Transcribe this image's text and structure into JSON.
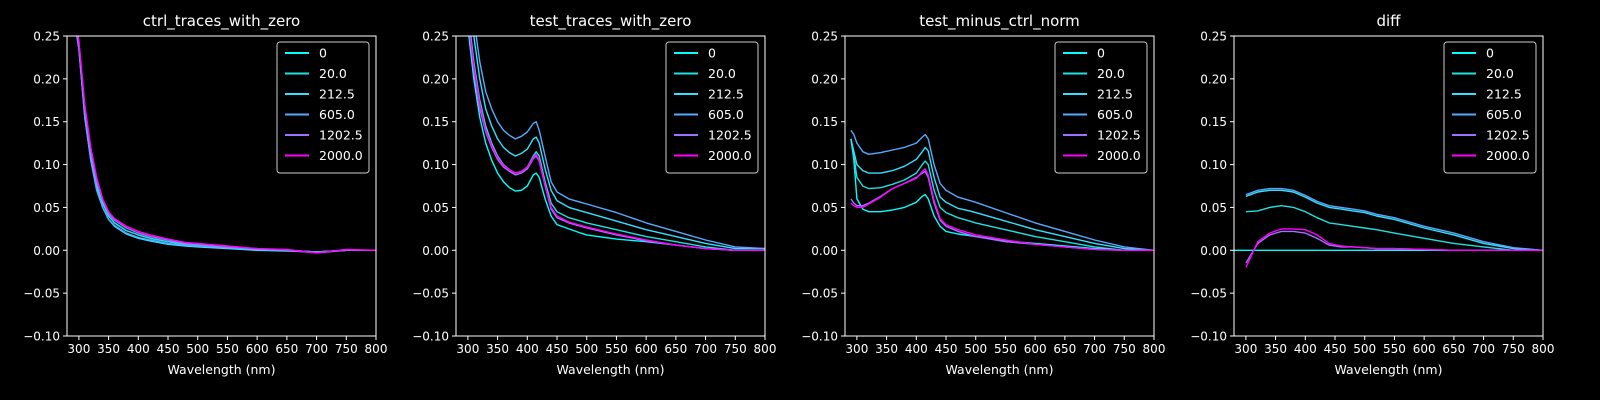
{
  "figure": {
    "background": "#000000",
    "foreground": "#ffffff"
  },
  "legend_labels": [
    "0",
    "20.0",
    "212.5",
    "605.0",
    "1202.5",
    "2000.0"
  ],
  "series_colors": [
    "#00ffff",
    "#20dfdf",
    "#33e0ff",
    "#55aaff",
    "#a070ff",
    "#ff00ff"
  ],
  "chart_data": [
    {
      "type": "line",
      "title": "ctrl_traces_with_zero",
      "xlabel": "Wavelength (nm)",
      "ylabel": "",
      "xlim": [
        280,
        800
      ],
      "ylim": [
        -0.1,
        0.25
      ],
      "xticks": [
        300,
        350,
        400,
        450,
        500,
        550,
        600,
        650,
        700,
        750,
        800
      ],
      "yticks": [
        -0.1,
        -0.05,
        0.0,
        0.05,
        0.1,
        0.15,
        0.2,
        0.25
      ],
      "ytick_labels": [
        "−0.10",
        "−0.05",
        "0.00",
        "0.05",
        "0.10",
        "0.15",
        "0.20",
        "0.25"
      ],
      "grid": false,
      "legend_position": "top-right",
      "x": [
        290,
        300,
        310,
        320,
        330,
        340,
        350,
        360,
        380,
        400,
        420,
        450,
        480,
        500,
        550,
        600,
        650,
        700,
        750,
        800
      ],
      "series": [
        {
          "name": "0",
          "values": [
            0.28,
            0.24,
            0.16,
            0.11,
            0.075,
            0.055,
            0.04,
            0.032,
            0.023,
            0.018,
            0.014,
            0.01,
            0.007,
            0.006,
            0.003,
            0.001,
            0.0,
            -0.002,
            0.0,
            0.0
          ]
        },
        {
          "name": "20.0",
          "values": [
            0.28,
            0.24,
            0.16,
            0.11,
            0.075,
            0.055,
            0.04,
            0.032,
            0.023,
            0.018,
            0.014,
            0.01,
            0.007,
            0.006,
            0.003,
            0.001,
            0.0,
            -0.002,
            0.0,
            0.0
          ]
        },
        {
          "name": "212.5",
          "values": [
            0.28,
            0.235,
            0.155,
            0.105,
            0.07,
            0.05,
            0.036,
            0.028,
            0.019,
            0.014,
            0.011,
            0.007,
            0.005,
            0.004,
            0.002,
            0.0,
            -0.001,
            -0.002,
            0.0,
            0.0
          ]
        },
        {
          "name": "605.0",
          "values": [
            0.28,
            0.235,
            0.155,
            0.105,
            0.07,
            0.05,
            0.036,
            0.029,
            0.02,
            0.015,
            0.012,
            0.008,
            0.006,
            0.005,
            0.003,
            0.001,
            0.0,
            -0.002,
            0.0,
            0.0
          ]
        },
        {
          "name": "1202.5",
          "values": [
            0.28,
            0.24,
            0.165,
            0.115,
            0.08,
            0.058,
            0.043,
            0.035,
            0.026,
            0.02,
            0.016,
            0.012,
            0.008,
            0.007,
            0.004,
            0.002,
            0.0,
            -0.003,
            0.0,
            0.0
          ]
        },
        {
          "name": "2000.0",
          "values": [
            0.28,
            0.245,
            0.17,
            0.12,
            0.085,
            0.06,
            0.045,
            0.037,
            0.028,
            0.022,
            0.018,
            0.013,
            0.009,
            0.008,
            0.005,
            0.002,
            0.001,
            -0.003,
            0.001,
            0.0
          ]
        }
      ]
    },
    {
      "type": "line",
      "title": "test_traces_with_zero",
      "xlabel": "Wavelength (nm)",
      "ylabel": "",
      "xlim": [
        280,
        800
      ],
      "ylim": [
        -0.1,
        0.25
      ],
      "xticks": [
        300,
        350,
        400,
        450,
        500,
        550,
        600,
        650,
        700,
        750,
        800
      ],
      "yticks": [
        -0.1,
        -0.05,
        0.0,
        0.05,
        0.1,
        0.15,
        0.2,
        0.25
      ],
      "ytick_labels": [
        "−0.10",
        "−0.05",
        "0.00",
        "0.05",
        "0.10",
        "0.15",
        "0.20",
        "0.25"
      ],
      "grid": false,
      "legend_position": "top-right",
      "x": [
        300,
        310,
        320,
        330,
        340,
        350,
        360,
        370,
        380,
        390,
        400,
        410,
        415,
        420,
        430,
        440,
        450,
        470,
        490,
        500,
        550,
        600,
        650,
        700,
        750,
        800
      ],
      "series": [
        {
          "name": "0",
          "values": [
            0.26,
            0.2,
            0.155,
            0.125,
            0.105,
            0.09,
            0.08,
            0.073,
            0.069,
            0.07,
            0.075,
            0.088,
            0.09,
            0.085,
            0.06,
            0.04,
            0.03,
            0.025,
            0.02,
            0.018,
            0.013,
            0.01,
            0.006,
            0.002,
            0.0,
            0.0
          ]
        },
        {
          "name": "20.0",
          "values": [
            0.28,
            0.22,
            0.175,
            0.145,
            0.125,
            0.11,
            0.1,
            0.094,
            0.09,
            0.092,
            0.097,
            0.11,
            0.115,
            0.11,
            0.08,
            0.055,
            0.045,
            0.038,
            0.034,
            0.032,
            0.024,
            0.016,
            0.01,
            0.004,
            0.0,
            0.0
          ]
        },
        {
          "name": "212.5",
          "values": [
            0.3,
            0.25,
            0.2,
            0.165,
            0.145,
            0.13,
            0.12,
            0.114,
            0.11,
            0.113,
            0.118,
            0.13,
            0.132,
            0.125,
            0.095,
            0.07,
            0.058,
            0.05,
            0.046,
            0.044,
            0.034,
            0.024,
            0.016,
            0.008,
            0.002,
            0.002
          ]
        },
        {
          "name": "605.0",
          "values": [
            0.32,
            0.27,
            0.22,
            0.185,
            0.165,
            0.15,
            0.14,
            0.134,
            0.13,
            0.133,
            0.138,
            0.148,
            0.15,
            0.14,
            0.11,
            0.08,
            0.068,
            0.06,
            0.056,
            0.054,
            0.044,
            0.032,
            0.022,
            0.012,
            0.004,
            0.002
          ]
        },
        {
          "name": "1202.5",
          "values": [
            0.27,
            0.21,
            0.165,
            0.138,
            0.12,
            0.106,
            0.097,
            0.092,
            0.088,
            0.09,
            0.095,
            0.107,
            0.11,
            0.104,
            0.075,
            0.048,
            0.038,
            0.032,
            0.028,
            0.026,
            0.018,
            0.011,
            0.006,
            0.002,
            0.0,
            0.0
          ]
        },
        {
          "name": "2000.0",
          "values": [
            0.27,
            0.215,
            0.17,
            0.14,
            0.122,
            0.108,
            0.099,
            0.094,
            0.09,
            0.092,
            0.097,
            0.108,
            0.112,
            0.105,
            0.076,
            0.05,
            0.04,
            0.033,
            0.029,
            0.027,
            0.019,
            0.012,
            0.006,
            0.002,
            0.0,
            0.0
          ]
        }
      ]
    },
    {
      "type": "line",
      "title": "test_minus_ctrl_norm",
      "xlabel": "Wavelength (nm)",
      "ylabel": "",
      "xlim": [
        280,
        800
      ],
      "ylim": [
        -0.1,
        0.25
      ],
      "xticks": [
        300,
        350,
        400,
        450,
        500,
        550,
        600,
        650,
        700,
        750,
        800
      ],
      "yticks": [
        -0.1,
        -0.05,
        0.0,
        0.05,
        0.1,
        0.15,
        0.2,
        0.25
      ],
      "ytick_labels": [
        "−0.10",
        "−0.05",
        "0.00",
        "0.05",
        "0.10",
        "0.15",
        "0.20",
        "0.25"
      ],
      "grid": false,
      "legend_position": "top-right",
      "x": [
        290,
        295,
        300,
        310,
        320,
        340,
        360,
        380,
        400,
        410,
        415,
        420,
        430,
        440,
        450,
        470,
        490,
        500,
        550,
        600,
        650,
        700,
        750,
        800
      ],
      "series": [
        {
          "name": "0",
          "values": [
            0.13,
            0.105,
            0.06,
            0.048,
            0.045,
            0.045,
            0.047,
            0.05,
            0.056,
            0.063,
            0.065,
            0.06,
            0.04,
            0.028,
            0.022,
            0.019,
            0.017,
            0.016,
            0.011,
            0.008,
            0.005,
            0.002,
            0.0,
            0.0
          ]
        },
        {
          "name": "20.0",
          "values": [
            0.13,
            0.11,
            0.085,
            0.075,
            0.072,
            0.073,
            0.077,
            0.082,
            0.09,
            0.1,
            0.104,
            0.1,
            0.07,
            0.05,
            0.044,
            0.038,
            0.034,
            0.032,
            0.024,
            0.016,
            0.01,
            0.004,
            0.0,
            0.0
          ]
        },
        {
          "name": "212.5",
          "values": [
            0.13,
            0.115,
            0.1,
            0.093,
            0.09,
            0.09,
            0.093,
            0.098,
            0.106,
            0.115,
            0.12,
            0.116,
            0.085,
            0.062,
            0.056,
            0.049,
            0.046,
            0.044,
            0.034,
            0.024,
            0.016,
            0.008,
            0.002,
            0.0
          ]
        },
        {
          "name": "605.0",
          "values": [
            0.14,
            0.135,
            0.125,
            0.115,
            0.112,
            0.114,
            0.117,
            0.12,
            0.125,
            0.132,
            0.135,
            0.13,
            0.1,
            0.078,
            0.07,
            0.062,
            0.058,
            0.056,
            0.044,
            0.032,
            0.022,
            0.012,
            0.004,
            0.0
          ]
        },
        {
          "name": "1202.5",
          "values": [
            0.06,
            0.055,
            0.052,
            0.052,
            0.055,
            0.063,
            0.072,
            0.078,
            0.085,
            0.09,
            0.092,
            0.085,
            0.055,
            0.035,
            0.028,
            0.022,
            0.018,
            0.016,
            0.01,
            0.007,
            0.004,
            0.001,
            0.0,
            0.0
          ]
        },
        {
          "name": "2000.0",
          "values": [
            0.055,
            0.052,
            0.05,
            0.05,
            0.054,
            0.062,
            0.072,
            0.078,
            0.084,
            0.092,
            0.095,
            0.088,
            0.058,
            0.037,
            0.03,
            0.024,
            0.02,
            0.018,
            0.012,
            0.007,
            0.004,
            0.001,
            0.0,
            0.0
          ]
        }
      ]
    },
    {
      "type": "line",
      "title": "diff",
      "xlabel": "Wavelength (nm)",
      "ylabel": "",
      "xlim": [
        280,
        800
      ],
      "ylim": [
        -0.1,
        0.25
      ],
      "xticks": [
        300,
        350,
        400,
        450,
        500,
        550,
        600,
        650,
        700,
        750,
        800
      ],
      "yticks": [
        -0.1,
        -0.05,
        0.0,
        0.05,
        0.1,
        0.15,
        0.2,
        0.25
      ],
      "ytick_labels": [
        "−0.10",
        "−0.05",
        "0.00",
        "0.05",
        "0.10",
        "0.15",
        "0.20",
        "0.25"
      ],
      "grid": false,
      "legend_position": "top-right",
      "x": [
        280,
        300,
        320,
        340,
        360,
        380,
        400,
        420,
        440,
        460,
        480,
        500,
        520,
        550,
        600,
        650,
        700,
        750,
        800
      ],
      "series": [
        {
          "name": "0",
          "values": [
            0.0,
            0.0,
            0.0,
            0.0,
            0.0,
            0.0,
            0.0,
            0.0,
            0.0,
            0.0,
            0.0,
            0.0,
            0.0,
            0.0,
            0.0,
            0.0,
            0.0,
            0.0,
            0.0
          ]
        },
        {
          "name": "20.0",
          "values": [
            null,
            0.045,
            0.046,
            0.05,
            0.052,
            0.05,
            0.045,
            0.038,
            0.032,
            0.03,
            0.028,
            0.026,
            0.024,
            0.02,
            0.014,
            0.008,
            0.004,
            0.0,
            0.0
          ]
        },
        {
          "name": "212.5",
          "values": [
            null,
            0.063,
            0.068,
            0.07,
            0.07,
            0.068,
            0.062,
            0.055,
            0.05,
            0.048,
            0.046,
            0.044,
            0.04,
            0.036,
            0.026,
            0.018,
            0.008,
            0.002,
            0.0
          ]
        },
        {
          "name": "605.0",
          "values": [
            null,
            0.065,
            0.07,
            0.072,
            0.072,
            0.07,
            0.064,
            0.057,
            0.052,
            0.05,
            0.048,
            0.046,
            0.042,
            0.038,
            0.028,
            0.02,
            0.01,
            0.003,
            0.0
          ]
        },
        {
          "name": "1202.5",
          "values": [
            null,
            -0.015,
            0.008,
            0.018,
            0.022,
            0.022,
            0.02,
            0.014,
            0.006,
            0.004,
            0.004,
            0.003,
            0.002,
            0.002,
            0.001,
            0.0,
            0.0,
            0.0,
            0.0
          ]
        },
        {
          "name": "2000.0",
          "values": [
            null,
            -0.02,
            0.01,
            0.02,
            0.025,
            0.025,
            0.024,
            0.018,
            0.008,
            0.005,
            0.004,
            0.003,
            0.002,
            0.002,
            0.001,
            0.0,
            0.0,
            0.0,
            0.0
          ]
        }
      ]
    }
  ]
}
